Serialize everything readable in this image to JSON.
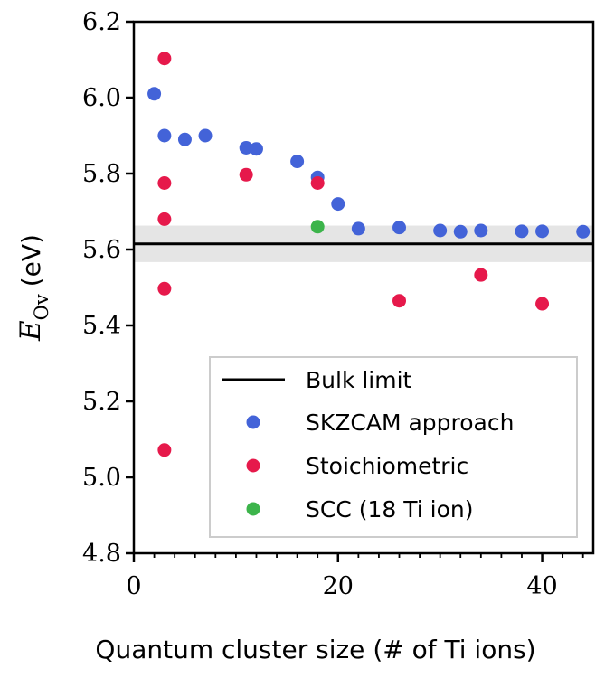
{
  "chart_data": {
    "type": "scatter",
    "xlabel": "Quantum cluster size (# of Ti ions)",
    "ylabel": {
      "symbol": "E",
      "subscript": "Ov",
      "unit": "(eV)"
    },
    "xlim": [
      0,
      45
    ],
    "ylim": [
      4.8,
      6.2
    ],
    "x_ticks": [
      0,
      20,
      40
    ],
    "x_tick_labels": [
      "0",
      "20",
      "40"
    ],
    "x_minor_ticks": [
      2,
      4,
      6,
      8,
      10,
      12,
      14,
      16,
      18,
      22,
      24,
      26,
      28,
      30,
      32,
      34,
      36,
      38,
      42,
      44
    ],
    "y_ticks": [
      4.8,
      5.0,
      5.2,
      5.4,
      5.6,
      5.8,
      6.0,
      6.2
    ],
    "y_tick_labels": [
      "4.8",
      "5.0",
      "5.2",
      "5.4",
      "5.6",
      "5.8",
      "6.0",
      "6.2"
    ],
    "grid": false,
    "legend_position": "lower-right",
    "bulk_limit": {
      "name": "Bulk limit",
      "value": 5.615,
      "band": [
        5.567,
        5.663
      ],
      "color": "#000000",
      "band_color": "#e5e5e5"
    },
    "series": [
      {
        "name": "SKZCAM approach",
        "color": "#4363d8",
        "points": [
          {
            "x": 2,
            "y": 6.01
          },
          {
            "x": 3,
            "y": 5.9
          },
          {
            "x": 5,
            "y": 5.89
          },
          {
            "x": 7,
            "y": 5.9
          },
          {
            "x": 11,
            "y": 5.868
          },
          {
            "x": 12,
            "y": 5.865
          },
          {
            "x": 16,
            "y": 5.832
          },
          {
            "x": 18,
            "y": 5.79
          },
          {
            "x": 20,
            "y": 5.72
          },
          {
            "x": 22,
            "y": 5.655
          },
          {
            "x": 26,
            "y": 5.658
          },
          {
            "x": 30,
            "y": 5.65
          },
          {
            "x": 32,
            "y": 5.647
          },
          {
            "x": 34,
            "y": 5.65
          },
          {
            "x": 38,
            "y": 5.648
          },
          {
            "x": 40,
            "y": 5.648
          },
          {
            "x": 44,
            "y": 5.647
          }
        ]
      },
      {
        "name": "Stoichiometric",
        "color": "#e6194b",
        "points": [
          {
            "x": 3,
            "y": 6.103
          },
          {
            "x": 3,
            "y": 5.775
          },
          {
            "x": 3,
            "y": 5.68
          },
          {
            "x": 3,
            "y": 5.497
          },
          {
            "x": 3,
            "y": 5.072
          },
          {
            "x": 11,
            "y": 5.797
          },
          {
            "x": 18,
            "y": 5.775
          },
          {
            "x": 26,
            "y": 5.465
          },
          {
            "x": 34,
            "y": 5.533
          },
          {
            "x": 40,
            "y": 5.457
          }
        ]
      },
      {
        "name": "SCC (18 Ti ion)",
        "color": "#3cb44b",
        "points": [
          {
            "x": 18,
            "y": 5.66
          }
        ]
      }
    ]
  }
}
